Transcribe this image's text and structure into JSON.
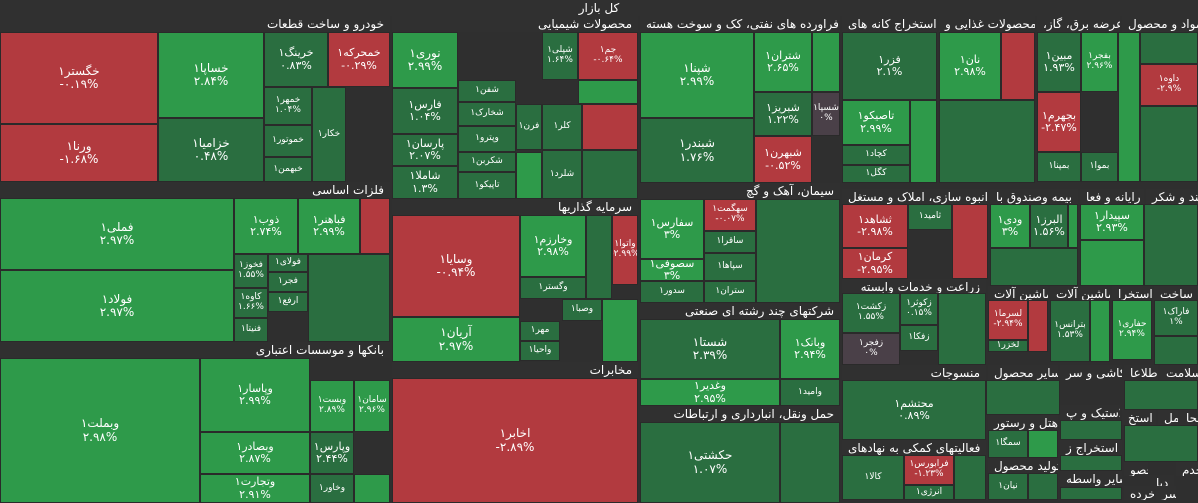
{
  "colors": {
    "up": "#2e9a4a",
    "upDark": "#2a6e40",
    "down": "#b23a3f",
    "neutral": "#4a4048",
    "header": "#303030",
    "border": "#2a2a2a"
  },
  "chart_data": {
    "type": "treemap",
    "title": "کل بازار",
    "sectors": [
      {
        "name": "خودرو و ساخت قطعات",
        "tiles": [
          {
            "name": "خگستر۱",
            "change": "-۰.۱۹%"
          },
          {
            "name": "خساپا۱",
            "change": "۲.۸۴%"
          },
          {
            "name": "خرینگ۱",
            "change": "۰.۸۳%"
          },
          {
            "name": "خمحرکه۱",
            "change": "-۰.۲۹%"
          },
          {
            "name": "ورنا۱",
            "change": "-۱.۶۸%"
          },
          {
            "name": "خزامیا۱",
            "change": "۰.۴۸%"
          },
          {
            "name": "خمهر۱",
            "change": "۱.۰۴%"
          },
          {
            "name": "خموتور۱",
            "change": ""
          },
          {
            "name": "خکار۱",
            "change": ""
          },
          {
            "name": "خبهمن۱",
            "change": ""
          }
        ]
      },
      {
        "name": "محصولات شیمیایی",
        "tiles": [
          {
            "name": "نوری۱",
            "change": "۲.۹۹%"
          },
          {
            "name": "شپلی۱",
            "change": "۱.۶۴%"
          },
          {
            "name": "جم۱",
            "change": "-۰.۶۴%"
          },
          {
            "name": "فارس۱",
            "change": "۱.۰۴%"
          },
          {
            "name": "شفن۱",
            "change": ""
          },
          {
            "name": "شخارک۱",
            "change": ""
          },
          {
            "name": "پارسان۱",
            "change": "۲.۰۷%"
          },
          {
            "name": "وپترو۱",
            "change": ""
          },
          {
            "name": "کلر۱",
            "change": ""
          },
          {
            "name": "فرن۱",
            "change": ""
          },
          {
            "name": "شکربن۱",
            "change": ""
          },
          {
            "name": "شاملا۱",
            "change": "۱.۳%"
          },
          {
            "name": "تاپیکو۱",
            "change": ""
          },
          {
            "name": "شلرد۱",
            "change": ""
          }
        ]
      },
      {
        "name": "فراورده های نفتی، کک و سوخت هسته",
        "tiles": [
          {
            "name": "شپنا۱",
            "change": "۲.۹۹%"
          },
          {
            "name": "شتران۱",
            "change": "۲.۶۵%"
          },
          {
            "name": "شبریز۱",
            "change": "۱.۲۲%"
          },
          {
            "name": "شسپا۱",
            "change": "۰%"
          },
          {
            "name": "شبندر۱",
            "change": "۱.۷۶%"
          },
          {
            "name": "شبهرن۱",
            "change": "-۰.۵۲%"
          }
        ]
      },
      {
        "name": "استخراج کانه های",
        "tiles": [
          {
            "name": "فزر۱",
            "change": "۲.۱%"
          },
          {
            "name": "تاصیکو۱",
            "change": "۲.۹۹%"
          },
          {
            "name": "کچاد۱",
            "change": ""
          },
          {
            "name": "کگل۱",
            "change": ""
          }
        ]
      },
      {
        "name": "محصولات غذایی و",
        "tiles": [
          {
            "name": "نان۱",
            "change": "۲.۹۸%"
          }
        ]
      },
      {
        "name": "،عرضه برق، گاز",
        "tiles": [
          {
            "name": "مبین۱",
            "change": "۱.۹۳%"
          },
          {
            "name": "بجهرم۱",
            "change": "-۲.۴۷%"
          },
          {
            "name": "بمپنا۱",
            "change": ""
          },
          {
            "name": "بفجر۱",
            "change": "۲.۹۶%"
          },
          {
            "name": "بموا۱",
            "change": ""
          }
        ]
      },
      {
        "name": "مواد و محصول",
        "tiles": [
          {
            "name": "داوه۱",
            "change": "-۲.۹%"
          }
        ]
      },
      {
        "name": "فلزات اساسی",
        "tiles": [
          {
            "name": "فملی۱",
            "change": "۲.۹۷%"
          },
          {
            "name": "ذوب۱",
            "change": "۲.۷۴%"
          },
          {
            "name": "فباهنر۱",
            "change": "۲.۹۹%"
          },
          {
            "name": "فولاد۱",
            "change": "۲.۹۷%"
          },
          {
            "name": "فخوز۱",
            "change": "۱.۵۵%"
          },
          {
            "name": "فولای۱",
            "change": ""
          },
          {
            "name": "فجر۱",
            "change": ""
          },
          {
            "name": "کاوه۱",
            "change": "۱.۶۶%"
          },
          {
            "name": "ارفع۱",
            "change": ""
          },
          {
            "name": "فنیتا۱",
            "change": ""
          }
        ]
      },
      {
        "name": "سرمایه گذاریها",
        "tiles": [
          {
            "name": "وسایا۱",
            "change": "-۰.۹۴%"
          },
          {
            "name": "وخارزم۱",
            "change": "۲.۹۸%"
          },
          {
            "name": "واتوا۱",
            "change": "-۲.۹۹%"
          },
          {
            "name": "وگستر۱",
            "change": ""
          },
          {
            "name": "آریان۱",
            "change": "۲.۹۷%"
          },
          {
            "name": "وصبا۱",
            "change": ""
          },
          {
            "name": "مهر۱",
            "change": ""
          },
          {
            "name": "واحیا۱",
            "change": ""
          }
        ]
      },
      {
        "name": "سیمان، آهک و گچ",
        "tiles": [
          {
            "name": "سفارس۱",
            "change": "۳%"
          },
          {
            "name": "سهگمت۱",
            "change": "-۰.۰۷%"
          },
          {
            "name": "ساقرا۱",
            "change": ""
          },
          {
            "name": "سصوفی۱",
            "change": "۳%"
          },
          {
            "name": "سپاها۱",
            "change": ""
          },
          {
            "name": "سدور۱",
            "change": ""
          },
          {
            "name": "ستران۱",
            "change": ""
          }
        ]
      },
      {
        "name": "انبوه سازی، املاک و مستغل",
        "tiles": [
          {
            "name": "ثشاهد۱",
            "change": "-۲.۹۸%"
          },
          {
            "name": "ثامید۱",
            "change": ""
          },
          {
            "name": "کرمان۱",
            "change": "-۲.۹۵%"
          }
        ]
      },
      {
        "name": "بیمه وصندوق با",
        "tiles": [
          {
            "name": "ودی۱",
            "change": "۳%"
          },
          {
            "name": "البرز۱",
            "change": "۱.۵۶%"
          }
        ]
      },
      {
        "name": "رایانه و فعا",
        "tiles": [
          {
            "name": "سپیدار۱",
            "change": "۲.۹۳%"
          }
        ]
      },
      {
        "name": "قند و شکر",
        "tiles": []
      },
      {
        "name": "زراعت و خدمات وابسته",
        "tiles": [
          {
            "name": "زکشت۱",
            "change": "۱.۵۵%"
          },
          {
            "name": "زکوثر۱",
            "change": "۰.۱۵%"
          },
          {
            "name": "زفکا۱",
            "change": ""
          },
          {
            "name": "زفجر۱",
            "change": "۰%"
          }
        ]
      },
      {
        "name": "ماشین آلات",
        "tiles": [
          {
            "name": "لسرما۱",
            "change": "-۲.۹۴%"
          },
          {
            "name": "لخزر۱",
            "change": ""
          }
        ]
      },
      {
        "name": "ماشین آلات",
        "tiles": [
          {
            "name": "بترانس۱",
            "change": "۱.۵۳%"
          }
        ]
      },
      {
        "name": "استخرا",
        "tiles": [
          {
            "name": "حفاری۱",
            "change": "۲.۹۴%"
          }
        ]
      },
      {
        "name": "ساخت",
        "tiles": [
          {
            "name": "فاراک۱",
            "change": "۱%"
          }
        ]
      },
      {
        "name": "شرکتهای چند رشته ای صنعتی",
        "tiles": [
          {
            "name": "شستا۱",
            "change": "۲.۳۹%"
          },
          {
            "name": "وبانک۱",
            "change": "۲.۹۴%"
          },
          {
            "name": "وغدیر۱",
            "change": "۲.۹۵%"
          },
          {
            "name": "وامید۱",
            "change": ""
          }
        ]
      },
      {
        "name": "منسوجات",
        "tiles": [
          {
            "name": "محتشم۱",
            "change": "۰.۸۹%"
          }
        ]
      },
      {
        "name": "سایر محصول",
        "tiles": []
      },
      {
        "name": "کاشی و سر",
        "tiles": []
      },
      {
        "name": "اطلاعا",
        "tiles": []
      },
      {
        "name": "سلامت",
        "tiles": []
      },
      {
        "name": "هتل و رستور",
        "tiles": [
          {
            "name": "سمگا۱",
            "change": ""
          }
        ]
      },
      {
        "name": "لاستیک و پ",
        "tiles": []
      },
      {
        "name": "استخ",
        "tiles": []
      },
      {
        "name": "حمل",
        "tiles": []
      },
      {
        "name": "محا",
        "tiles": []
      },
      {
        "name": "استخراج ز",
        "tiles": []
      },
      {
        "name": "فعالیتهای کمکی به نهادهای",
        "tiles": [
          {
            "name": "کالا۱",
            "change": ""
          },
          {
            "name": "فرابورس۱",
            "change": "-۱.۲۳%"
          },
          {
            "name": "انرژی۱",
            "change": ""
          }
        ]
      },
      {
        "name": "تولید محصول",
        "tiles": [
          {
            "name": "نیان۱",
            "change": ""
          }
        ]
      },
      {
        "name": "سایر واسطه",
        "tiles": []
      },
      {
        "name": "خدم",
        "tiles": []
      },
      {
        "name": "محصو",
        "tiles": []
      },
      {
        "name": "دبا",
        "tiles": []
      },
      {
        "name": "خرده",
        "tiles": []
      },
      {
        "name": "سر",
        "tiles": []
      },
      {
        "name": "بانکها و موسسات اعتباری",
        "tiles": [
          {
            "name": "وبملت۱",
            "change": "۲.۹۸%"
          },
          {
            "name": "وپاسار۱",
            "change": "۲.۹۹%"
          },
          {
            "name": "وبصادر۱",
            "change": "۲.۸۷%"
          },
          {
            "name": "وتجارت۱",
            "change": "۲.۹۱%"
          },
          {
            "name": "وبست۱",
            "change": "۲.۸۹%"
          },
          {
            "name": "سامان۱",
            "change": "۲.۹۶%"
          },
          {
            "name": "وپارس۱",
            "change": "۲.۴۴%"
          },
          {
            "name": "وخاور۱",
            "change": ""
          }
        ]
      },
      {
        "name": "مخابرات",
        "tiles": [
          {
            "name": "اخابر۱",
            "change": "-۲.۸۹%"
          }
        ]
      },
      {
        "name": "حمل ونقل، انبارداری و ارتباطات",
        "tiles": [
          {
            "name": "حکشتی۱",
            "change": "۱.۰۷%"
          }
        ]
      }
    ]
  }
}
